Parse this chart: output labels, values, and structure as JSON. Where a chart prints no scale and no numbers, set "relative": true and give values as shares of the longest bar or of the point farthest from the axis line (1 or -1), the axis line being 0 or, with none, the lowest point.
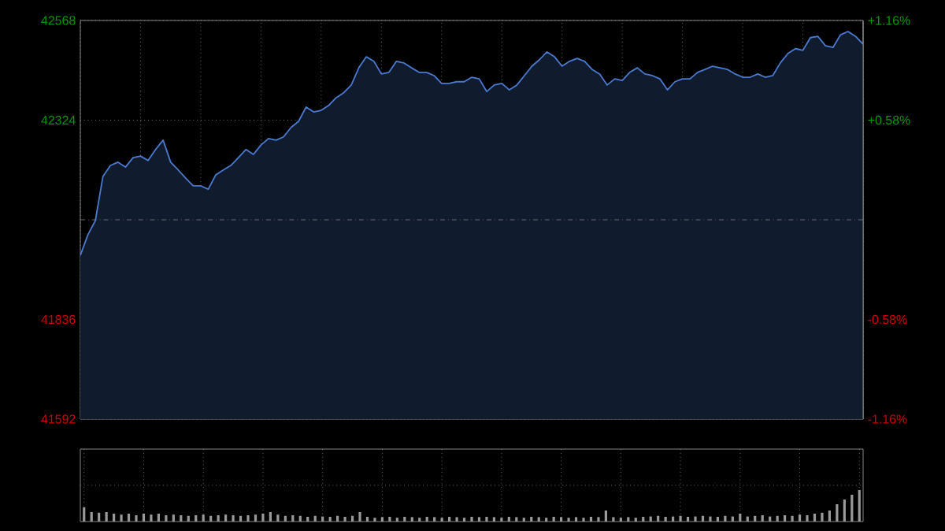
{
  "chart_data": [
    {
      "type": "area",
      "categories": [
        null,
        null,
        null,
        null,
        null,
        null,
        null,
        null,
        null,
        null,
        null,
        null,
        null,
        null,
        null,
        null,
        null,
        null,
        null,
        null,
        null,
        null,
        null,
        null,
        null,
        null,
        null,
        null,
        null,
        null,
        null,
        null,
        null,
        null,
        null,
        null,
        null,
        null,
        null,
        null,
        null,
        null,
        null,
        null,
        null,
        null,
        null,
        null,
        null,
        null,
        null,
        null,
        null,
        null,
        null,
        null,
        null,
        null,
        null,
        null,
        null,
        null,
        null,
        null,
        null,
        null,
        null,
        null,
        null,
        null,
        null,
        null,
        null,
        null,
        null,
        null,
        null,
        null,
        null,
        null,
        null,
        null,
        null,
        null,
        null,
        null,
        null,
        null,
        null,
        null,
        null,
        null,
        null,
        null,
        null,
        null,
        null,
        null,
        null,
        null,
        null,
        null,
        null,
        null,
        null
      ],
      "series": [
        {
          "color": "#4a7bd0",
          "values": [
            41993,
            42043,
            42078,
            42186,
            42213,
            42221,
            42209,
            42232,
            42236,
            42225,
            42252,
            42275,
            42221,
            42202,
            42182,
            42163,
            42163,
            42155,
            42190,
            42202,
            42213,
            42232,
            42252,
            42240,
            42263,
            42279,
            42275,
            42283,
            42306,
            42321,
            42356,
            42344,
            42348,
            42360,
            42379,
            42391,
            42410,
            42452,
            42479,
            42468,
            42437,
            42441,
            42468,
            42464,
            42452,
            42441,
            42441,
            42433,
            42414,
            42414,
            42418,
            42418,
            42429,
            42425,
            42394,
            42410,
            42414,
            42398,
            42410,
            42433,
            42456,
            42472,
            42491,
            42479,
            42456,
            42468,
            42475,
            42468,
            42448,
            42437,
            42410,
            42425,
            42421,
            42441,
            42452,
            42437,
            42433,
            42425,
            42398,
            42418,
            42425,
            42425,
            42441,
            42448,
            42456,
            42452,
            42448,
            42437,
            42429,
            42429,
            42437,
            42429,
            42433,
            42464,
            42487,
            42499,
            42495,
            42526,
            42529,
            42506,
            42502,
            42533,
            42541,
            42529,
            42510
          ]
        }
      ],
      "ylim": [
        41592,
        42568
      ],
      "yticks": [
        41592,
        41836,
        42324,
        42568
      ],
      "y2lim": [
        -1.16,
        1.16
      ],
      "y2ticks": [
        {
          "value": -1.16,
          "label": "-1.16%"
        },
        {
          "value": -0.58,
          "label": "-0.58%"
        },
        {
          "value": 0.58,
          "label": "+0.58%"
        },
        {
          "value": 1.16,
          "label": "+1.16%"
        }
      ],
      "ref_lines": [
        {
          "axis": "y",
          "value": 42080,
          "color": "#808080",
          "line_style": "dashed"
        }
      ],
      "grid": true,
      "tick_labels": "y"
    },
    {
      "type": "bar",
      "relative": true,
      "color": "#9a9a9a",
      "grid": true,
      "tick_labels": false,
      "categories": [
        null,
        null,
        null,
        null,
        null,
        null,
        null,
        null,
        null,
        null,
        null,
        null,
        null,
        null,
        null,
        null,
        null,
        null,
        null,
        null,
        null,
        null,
        null,
        null,
        null,
        null,
        null,
        null,
        null,
        null,
        null,
        null,
        null,
        null,
        null,
        null,
        null,
        null,
        null,
        null,
        null,
        null,
        null,
        null,
        null,
        null,
        null,
        null,
        null,
        null,
        null,
        null,
        null,
        null,
        null,
        null,
        null,
        null,
        null,
        null,
        null,
        null,
        null,
        null,
        null,
        null,
        null,
        null,
        null,
        null,
        null,
        null,
        null,
        null,
        null,
        null,
        null,
        null,
        null,
        null,
        null,
        null,
        null,
        null,
        null,
        null,
        null,
        null,
        null,
        null,
        null,
        null,
        null,
        null,
        null,
        null,
        null,
        null,
        null,
        null,
        null,
        null,
        null,
        null,
        null
      ],
      "values": [
        0.45,
        0.3,
        0.28,
        0.3,
        0.25,
        0.22,
        0.25,
        0.2,
        0.25,
        0.22,
        0.25,
        0.2,
        0.22,
        0.2,
        0.18,
        0.2,
        0.22,
        0.18,
        0.2,
        0.22,
        0.2,
        0.18,
        0.2,
        0.22,
        0.25,
        0.3,
        0.22,
        0.18,
        0.2,
        0.18,
        0.15,
        0.18,
        0.16,
        0.15,
        0.18,
        0.15,
        0.18,
        0.3,
        0.15,
        0.12,
        0.14,
        0.15,
        0.12,
        0.15,
        0.14,
        0.12,
        0.15,
        0.14,
        0.12,
        0.15,
        0.14,
        0.12,
        0.15,
        0.14,
        0.15,
        0.14,
        0.12,
        0.15,
        0.14,
        0.12,
        0.15,
        0.14,
        0.12,
        0.15,
        0.14,
        0.12,
        0.14,
        0.12,
        0.15,
        0.14,
        0.35,
        0.14,
        0.12,
        0.14,
        0.12,
        0.15,
        0.16,
        0.18,
        0.15,
        0.16,
        0.18,
        0.15,
        0.16,
        0.18,
        0.16,
        0.15,
        0.18,
        0.16,
        0.25,
        0.16,
        0.18,
        0.2,
        0.16,
        0.18,
        0.2,
        0.18,
        0.22,
        0.2,
        0.25,
        0.28,
        0.35,
        0.55,
        0.7,
        0.85,
        1.0
      ]
    }
  ]
}
